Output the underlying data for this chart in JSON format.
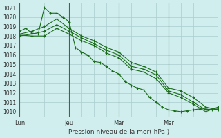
{
  "bg_color": "#d0eeee",
  "grid_color": "#aacccc",
  "line_color": "#1a6b1a",
  "title": "Pression niveau de la mer( hPa )",
  "ylabel_ticks": [
    1010,
    1011,
    1012,
    1013,
    1014,
    1015,
    1016,
    1017,
    1018,
    1019,
    1020,
    1021
  ],
  "xlim": [
    0,
    96
  ],
  "ylim": [
    1009.5,
    1021.5
  ],
  "xtick_positions": [
    0,
    24,
    48,
    72,
    96
  ],
  "xtick_labels": [
    "Lun",
    "Jeu",
    "Mar",
    "Mer",
    ""
  ],
  "day_lines": [
    0,
    24,
    48,
    72
  ],
  "series": [
    {
      "x": [
        0,
        3,
        6,
        9,
        12,
        15,
        18,
        21,
        24,
        27,
        30,
        33,
        36,
        39,
        42,
        45,
        48,
        51,
        54,
        57,
        60,
        63,
        66,
        69,
        72,
        75,
        78,
        81,
        84,
        87,
        90,
        93,
        96
      ],
      "y": [
        1018.5,
        1018.8,
        1018.3,
        1018.2,
        1021.0,
        1020.4,
        1020.4,
        1020.0,
        1019.5,
        1016.8,
        1016.3,
        1016.0,
        1015.3,
        1015.2,
        1014.8,
        1014.3,
        1014.0,
        1013.2,
        1012.8,
        1012.5,
        1012.3,
        1011.5,
        1011.0,
        1010.5,
        1010.2,
        1010.1,
        1010.0,
        1010.1,
        1010.2,
        1010.3,
        1010.3,
        1010.2,
        1010.3
      ]
    },
    {
      "x": [
        0,
        6,
        12,
        18,
        24,
        30,
        36,
        42,
        48,
        54,
        60,
        66,
        72,
        78,
        84,
        90,
        96
      ],
      "y": [
        1018.2,
        1018.5,
        1019.0,
        1019.8,
        1018.8,
        1018.0,
        1017.5,
        1016.8,
        1016.3,
        1015.2,
        1014.8,
        1014.2,
        1012.5,
        1012.2,
        1011.5,
        1010.5,
        1010.2
      ]
    },
    {
      "x": [
        0,
        6,
        12,
        18,
        24,
        30,
        36,
        42,
        48,
        54,
        60,
        66,
        72,
        78,
        84,
        90,
        96
      ],
      "y": [
        1018.0,
        1018.2,
        1018.5,
        1019.2,
        1018.5,
        1017.8,
        1017.2,
        1016.5,
        1016.0,
        1014.8,
        1014.5,
        1013.9,
        1012.2,
        1011.8,
        1011.0,
        1010.2,
        1010.4
      ]
    },
    {
      "x": [
        0,
        6,
        12,
        18,
        24,
        30,
        36,
        42,
        48,
        54,
        60,
        66,
        72,
        78,
        84,
        90,
        96
      ],
      "y": [
        1018.1,
        1018.0,
        1018.0,
        1018.8,
        1018.2,
        1017.5,
        1017.0,
        1016.2,
        1015.7,
        1014.5,
        1014.2,
        1013.5,
        1012.0,
        1011.5,
        1010.8,
        1010.0,
        1010.5
      ]
    }
  ]
}
